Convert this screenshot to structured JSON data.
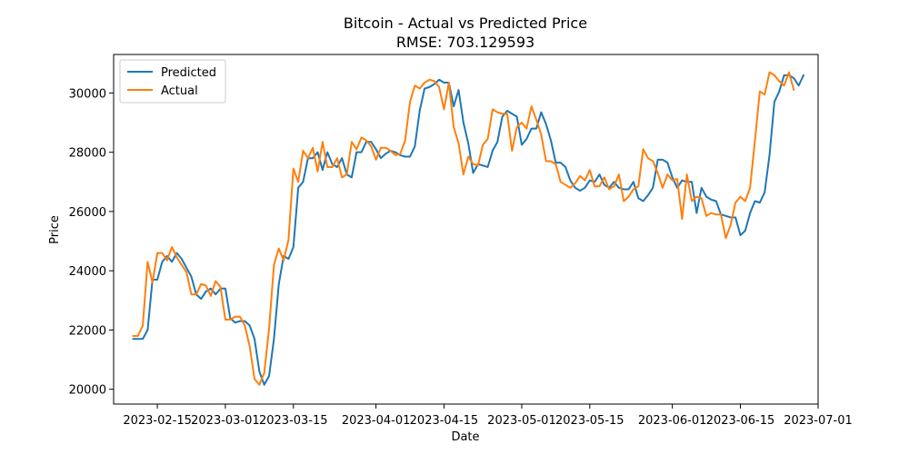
{
  "chart_data": {
    "type": "line",
    "title": "Bitcoin - Actual vs Predicted Price",
    "subtitle": "RMSE: 703.129593",
    "xlabel": "Date",
    "ylabel": "Price",
    "xlim": [
      "2023-02-06",
      "2023-07-01"
    ],
    "ylim": [
      19500,
      31300
    ],
    "yticks": [
      20000,
      22000,
      24000,
      26000,
      28000,
      30000
    ],
    "xticks": [
      "2023-02-15",
      "2023-03-01",
      "2023-03-15",
      "2023-04-01",
      "2023-04-15",
      "2023-05-01",
      "2023-05-15",
      "2023-06-01",
      "2023-06-15",
      "2023-07-01"
    ],
    "grid": false,
    "legend_position": "top-left",
    "x_start": "2023-02-10",
    "x_end": "2023-06-29",
    "series": [
      {
        "name": "Predicted",
        "color": "#1f77b4",
        "values": [
          21700,
          21700,
          21700,
          22000,
          23700,
          23700,
          24300,
          24500,
          24300,
          24600,
          24400,
          24100,
          23800,
          23200,
          23050,
          23300,
          23400,
          23200,
          23400,
          23400,
          22400,
          22250,
          22300,
          22300,
          22150,
          21700,
          20600,
          20150,
          20450,
          21700,
          23550,
          24500,
          24400,
          24800,
          26800,
          27000,
          27800,
          27800,
          28000,
          27400,
          28000,
          27600,
          27500,
          27800,
          27250,
          27150,
          28000,
          28000,
          28350,
          28350,
          28100,
          27800,
          27950,
          28050,
          28000,
          27900,
          27850,
          27850,
          28200,
          29400,
          30150,
          30200,
          30300,
          30450,
          30350,
          30350,
          29550,
          30100,
          29000,
          28300,
          27300,
          27600,
          27550,
          27500,
          28050,
          28350,
          29200,
          29400,
          29300,
          29200,
          28250,
          28450,
          28800,
          28800,
          29350,
          28950,
          28400,
          27650,
          27650,
          27500,
          27050,
          26800,
          26700,
          26800,
          27050,
          27000,
          27250,
          26900,
          26800,
          27000,
          26800,
          26750,
          26750,
          27000,
          26450,
          26350,
          26550,
          26800,
          27750,
          27750,
          27650,
          27150,
          26800,
          27050,
          27000,
          27000,
          25950,
          26800,
          26500,
          26400,
          26350,
          25900,
          25850,
          25800,
          25800,
          25200,
          25350,
          25950,
          26350,
          26300,
          26650,
          27900,
          29700,
          30050,
          30600,
          30600,
          30500,
          30250,
          30600
        ]
      },
      {
        "name": "Actual",
        "color": "#ff7f0e",
        "values": [
          21800,
          21800,
          22150,
          24300,
          23600,
          24600,
          24600,
          24350,
          24800,
          24450,
          24200,
          23950,
          23200,
          23200,
          23550,
          23500,
          23150,
          23650,
          23450,
          22350,
          22350,
          22450,
          22450,
          22150,
          21450,
          20350,
          20150,
          20550,
          22050,
          24200,
          24750,
          24350,
          25050,
          27450,
          27000,
          28050,
          27800,
          28150,
          27350,
          28350,
          27500,
          27500,
          27800,
          27150,
          27250,
          28350,
          28100,
          28500,
          28400,
          28200,
          27750,
          28150,
          28150,
          28050,
          27900,
          27950,
          28400,
          29700,
          30250,
          30150,
          30350,
          30450,
          30400,
          30200,
          29450,
          30350,
          28850,
          28300,
          27250,
          27850,
          27600,
          27550,
          28250,
          28450,
          29450,
          29350,
          29300,
          29300,
          28050,
          28850,
          29000,
          28800,
          29550,
          29100,
          28600,
          27700,
          27700,
          27600,
          27000,
          26900,
          26800,
          26950,
          27200,
          27050,
          27400,
          26850,
          26850,
          27150,
          26750,
          26850,
          27250,
          26350,
          26500,
          26750,
          26850,
          28100,
          27800,
          27700,
          27300,
          26800,
          27250,
          27050,
          27100,
          25750,
          27250,
          26350,
          26500,
          26450,
          25850,
          25950,
          25900,
          25900,
          25100,
          25550,
          26300,
          26500,
          26350,
          26800,
          28400,
          30050,
          29950,
          30700,
          30600,
          30400,
          30250,
          30700,
          30100
        ]
      }
    ]
  }
}
